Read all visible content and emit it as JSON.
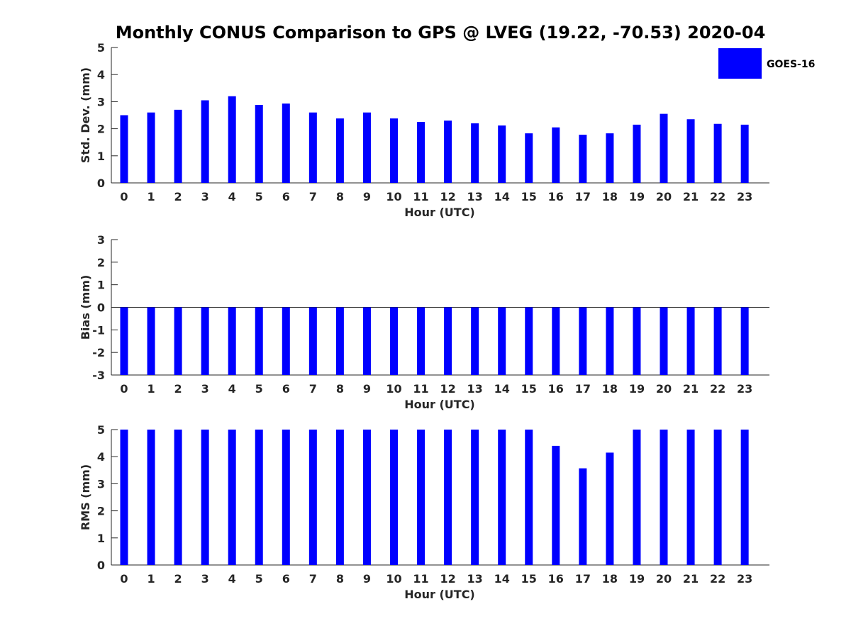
{
  "figure_title": "Monthly CONUS Comparison to GPS @ LVEG (19.22, -70.53) 2020-04",
  "legend": {
    "label": "GOES-16",
    "color": "#0000ff"
  },
  "chart_data": [
    {
      "type": "bar",
      "ylabel": "Std. Dev. (mm)",
      "xlabel": "Hour (UTC)",
      "categories": [
        "0",
        "1",
        "2",
        "3",
        "4",
        "5",
        "6",
        "7",
        "8",
        "9",
        "10",
        "11",
        "12",
        "13",
        "14",
        "15",
        "16",
        "17",
        "18",
        "19",
        "20",
        "21",
        "22",
        "23"
      ],
      "ylim": [
        0,
        5
      ],
      "yticks": [
        0,
        1,
        2,
        3,
        4,
        5
      ],
      "series": [
        {
          "name": "GOES-16",
          "color": "#0000ff",
          "values": [
            2.5,
            2.6,
            2.7,
            3.05,
            3.2,
            2.88,
            2.93,
            2.6,
            2.38,
            2.6,
            2.38,
            2.25,
            2.3,
            2.2,
            2.12,
            1.83,
            2.05,
            1.78,
            1.83,
            2.15,
            2.55,
            2.35,
            2.18,
            2.15
          ]
        }
      ]
    },
    {
      "type": "bar",
      "ylabel": "Bias (mm)",
      "xlabel": "Hour (UTC)",
      "categories": [
        "0",
        "1",
        "2",
        "3",
        "4",
        "5",
        "6",
        "7",
        "8",
        "9",
        "10",
        "11",
        "12",
        "13",
        "14",
        "15",
        "16",
        "17",
        "18",
        "19",
        "20",
        "21",
        "22",
        "23"
      ],
      "ylim": [
        -3,
        3
      ],
      "yticks": [
        -3,
        -2,
        -1,
        0,
        1,
        2,
        3
      ],
      "series": [
        {
          "name": "GOES-16",
          "color": "#0000ff",
          "values": [
            -3,
            -3,
            -3,
            -3,
            -3,
            -3,
            -3,
            -3,
            -3,
            -3,
            -3,
            -3,
            -3,
            -3,
            -3,
            -3,
            -3,
            -3,
            -3,
            -3,
            -3,
            -3,
            -3,
            -3
          ]
        }
      ]
    },
    {
      "type": "bar",
      "ylabel": "RMS (mm)",
      "xlabel": "Hour (UTC)",
      "categories": [
        "0",
        "1",
        "2",
        "3",
        "4",
        "5",
        "6",
        "7",
        "8",
        "9",
        "10",
        "11",
        "12",
        "13",
        "14",
        "15",
        "16",
        "17",
        "18",
        "19",
        "20",
        "21",
        "22",
        "23"
      ],
      "ylim": [
        0,
        5
      ],
      "yticks": [
        0,
        1,
        2,
        3,
        4,
        5
      ],
      "series": [
        {
          "name": "GOES-16",
          "color": "#0000ff",
          "values": [
            5,
            5,
            5,
            5,
            5,
            5,
            5,
            5,
            5,
            5,
            5,
            5,
            5,
            5,
            5,
            5,
            4.4,
            3.57,
            4.15,
            5,
            5,
            5,
            5,
            5
          ]
        }
      ]
    }
  ]
}
